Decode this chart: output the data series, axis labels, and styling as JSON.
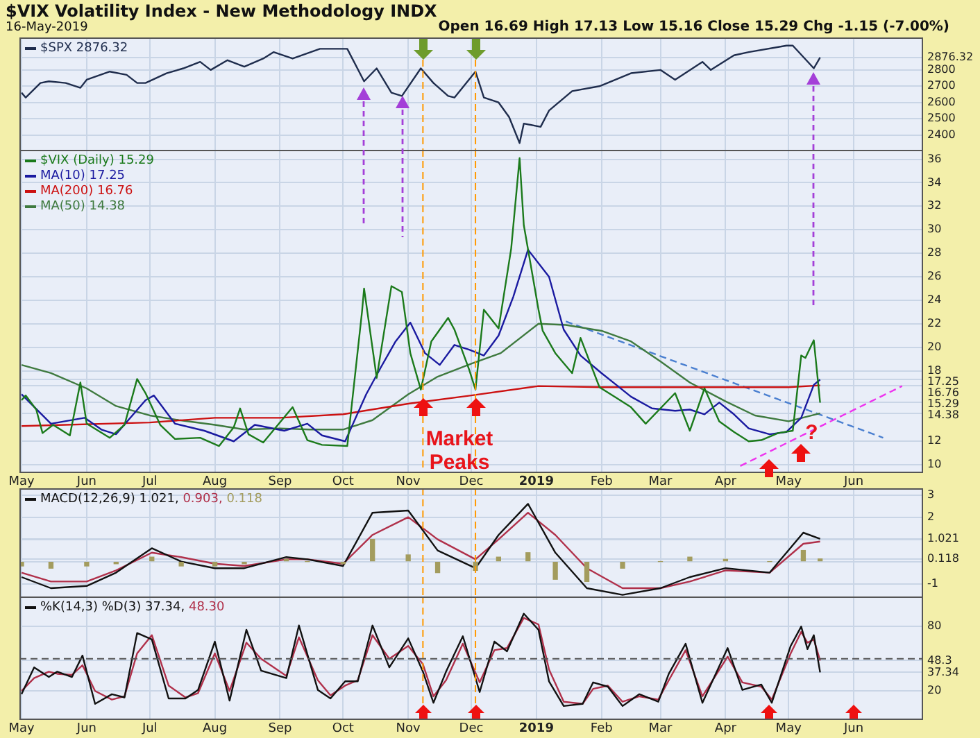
{
  "chart_data": [
    {
      "type": "line",
      "title": "$VIX Volatility Index - New Methodology INDX",
      "subtitle": "16-May-2019",
      "annotations": [
        "Open 16.69 High 17.13 Low 15.16 Close 15.29 Chg -1.15 (-7.00%)"
      ],
      "xlim": [
        "2018-04-30",
        "2019-07-04"
      ],
      "xticks": [
        {
          "value": "2018-05-01",
          "label": null
        },
        {
          "value": "2018-06-01",
          "label": null
        },
        {
          "value": "2018-07-01",
          "label": null
        },
        {
          "value": "2018-08-01",
          "label": null
        },
        {
          "value": "2018-09-01",
          "label": null
        },
        {
          "value": "2018-10-01",
          "label": null
        },
        {
          "value": "2018-11-01",
          "label": null
        },
        {
          "value": "2018-12-01",
          "label": null
        },
        {
          "value": "2019-01-01",
          "label": null
        },
        {
          "value": "2019-02-01",
          "label": null
        },
        {
          "value": "2019-03-01",
          "label": null
        },
        {
          "value": "2019-04-01",
          "label": null
        },
        {
          "value": "2019-05-01",
          "label": null
        },
        {
          "value": "2019-06-01",
          "label": null
        }
      ],
      "ylim": [
        2300,
        3000
      ],
      "yticks": [
        2400,
        2500,
        2600,
        2700,
        2800,
        2876.32
      ],
      "tick_labels": "y",
      "grid": true,
      "legend": "top left",
      "ref_lines": [
        {
          "axis": "x",
          "value": "2018-11-08",
          "color": "#ff9900",
          "line_style": "dashed"
        },
        {
          "axis": "x",
          "value": "2018-12-03",
          "color": "#ff9900",
          "line_style": "dashed"
        }
      ],
      "series": [
        {
          "name": "$SPX 2876.32",
          "color": "#1f2d4d",
          "x": [
            "2018-05-01",
            "2018-05-03",
            "2018-05-10",
            "2018-05-14",
            "2018-05-22",
            "2018-05-29",
            "2018-06-01",
            "2018-06-12",
            "2018-06-20",
            "2018-06-25",
            "2018-06-29",
            "2018-07-09",
            "2018-07-17",
            "2018-07-25",
            "2018-07-30",
            "2018-08-07",
            "2018-08-15",
            "2018-08-24",
            "2018-08-29",
            "2018-09-07",
            "2018-09-20",
            "2018-10-03",
            "2018-10-11",
            "2018-10-17",
            "2018-10-24",
            "2018-10-29",
            "2018-11-07",
            "2018-11-13",
            "2018-11-20",
            "2018-11-23",
            "2018-12-03",
            "2018-12-07",
            "2018-12-14",
            "2018-12-19",
            "2018-12-24",
            "2018-12-26",
            "2019-01-03",
            "2019-01-07",
            "2019-01-18",
            "2019-01-31",
            "2019-02-15",
            "2019-03-01",
            "2019-03-08",
            "2019-03-21",
            "2019-03-25",
            "2019-04-05",
            "2019-04-12",
            "2019-04-30",
            "2019-05-03",
            "2019-05-13",
            "2019-05-16"
          ],
          "values": [
            2660,
            2630,
            2720,
            2730,
            2720,
            2690,
            2740,
            2790,
            2770,
            2720,
            2720,
            2780,
            2810,
            2850,
            2800,
            2860,
            2820,
            2870,
            2910,
            2870,
            2930,
            2930,
            2730,
            2810,
            2660,
            2640,
            2810,
            2720,
            2640,
            2630,
            2790,
            2630,
            2600,
            2510,
            2350,
            2470,
            2450,
            2550,
            2670,
            2700,
            2780,
            2800,
            2740,
            2850,
            2800,
            2890,
            2910,
            2950,
            2950,
            2810,
            2876.32
          ]
        }
      ]
    },
    {
      "type": "line",
      "xlim": [
        "2018-04-30",
        "2019-07-04"
      ],
      "xticks": [
        {
          "value": "2018-05-01",
          "label": "May"
        },
        {
          "value": "2018-06-01",
          "label": "Jun"
        },
        {
          "value": "2018-07-01",
          "label": "Jul"
        },
        {
          "value": "2018-08-01",
          "label": "Aug"
        },
        {
          "value": "2018-09-01",
          "label": "Sep"
        },
        {
          "value": "2018-10-01",
          "label": "Oct"
        },
        {
          "value": "2018-11-01",
          "label": "Nov"
        },
        {
          "value": "2018-12-01",
          "label": "Dec"
        },
        {
          "value": "2019-01-01",
          "label": "2019"
        },
        {
          "value": "2019-02-01",
          "label": "Feb"
        },
        {
          "value": "2019-03-01",
          "label": "Mar"
        },
        {
          "value": "2019-04-01",
          "label": "Apr"
        },
        {
          "value": "2019-05-01",
          "label": "May"
        },
        {
          "value": "2019-06-01",
          "label": "Jun"
        }
      ],
      "ylim": [
        9.3,
        36.8
      ],
      "yticks": [
        10,
        12,
        14.38,
        15.29,
        16.76,
        17.25,
        18,
        20,
        22,
        24,
        26,
        28,
        30,
        32,
        34,
        36
      ],
      "grid": true,
      "legend": "top left",
      "annotations": [
        "Market Peaks",
        {
          "text": "?",
          "x": "2019-05-12",
          "y": 12.7
        }
      ],
      "ref_lines": [
        {
          "axis": "x",
          "value": "2018-11-08",
          "color": "#ff9900",
          "line_style": "dashed"
        },
        {
          "axis": "x",
          "value": "2018-12-03",
          "color": "#ff9900",
          "line_style": "dashed"
        }
      ],
      "series": [
        {
          "name": "$VIX (Daily) 15.29",
          "color": "#1b7a1b",
          "x": [
            "2018-05-01",
            "2018-05-03",
            "2018-05-08",
            "2018-05-11",
            "2018-05-16",
            "2018-05-24",
            "2018-05-29",
            "2018-06-01",
            "2018-06-12",
            "2018-06-19",
            "2018-06-25",
            "2018-06-29",
            "2018-07-06",
            "2018-07-13",
            "2018-07-25",
            "2018-08-03",
            "2018-08-10",
            "2018-08-13",
            "2018-08-17",
            "2018-08-24",
            "2018-09-07",
            "2018-09-14",
            "2018-09-21",
            "2018-10-03",
            "2018-10-10",
            "2018-10-11",
            "2018-10-17",
            "2018-10-24",
            "2018-10-29",
            "2018-11-02",
            "2018-11-07",
            "2018-11-12",
            "2018-11-20",
            "2018-11-23",
            "2018-11-30",
            "2018-12-03",
            "2018-12-07",
            "2018-12-14",
            "2018-12-20",
            "2018-12-24",
            "2018-12-26",
            "2019-01-02",
            "2019-01-04",
            "2019-01-10",
            "2019-01-18",
            "2019-01-22",
            "2019-01-31",
            "2019-02-08",
            "2019-02-15",
            "2019-02-22",
            "2019-03-08",
            "2019-03-15",
            "2019-03-22",
            "2019-03-29",
            "2019-04-05",
            "2019-04-12",
            "2019-04-18",
            "2019-04-26",
            "2019-05-03",
            "2019-05-07",
            "2019-05-09",
            "2019-05-13",
            "2019-05-16"
          ],
          "values": [
            15.5,
            15.9,
            14.7,
            12.7,
            13.4,
            12.5,
            17.0,
            13.5,
            12.3,
            13.4,
            17.3,
            16.1,
            13.4,
            12.2,
            12.3,
            11.6,
            13.2,
            14.8,
            12.6,
            11.9,
            14.9,
            12.1,
            11.7,
            11.6,
            23.0,
            25.0,
            17.4,
            25.2,
            24.7,
            19.5,
            16.4,
            20.5,
            22.5,
            21.5,
            18.1,
            16.4,
            23.2,
            21.6,
            28.4,
            36.1,
            30.4,
            23.2,
            21.4,
            19.5,
            17.8,
            20.8,
            16.6,
            15.7,
            14.9,
            13.5,
            16.1,
            12.9,
            16.5,
            13.7,
            12.8,
            12.0,
            12.1,
            12.7,
            12.9,
            19.3,
            19.1,
            20.6,
            15.29
          ]
        },
        {
          "name": "MA(10) 17.25",
          "color": "#1a1aa0",
          "x": [
            "2018-05-01",
            "2018-05-15",
            "2018-05-31",
            "2018-06-08",
            "2018-06-15",
            "2018-06-29",
            "2018-07-03",
            "2018-07-13",
            "2018-07-27",
            "2018-08-10",
            "2018-08-20",
            "2018-09-03",
            "2018-09-14",
            "2018-09-21",
            "2018-10-02",
            "2018-10-12",
            "2018-10-19",
            "2018-10-26",
            "2018-11-02",
            "2018-11-09",
            "2018-11-16",
            "2018-11-23",
            "2018-11-30",
            "2018-12-07",
            "2018-12-14",
            "2018-12-21",
            "2018-12-28",
            "2019-01-07",
            "2019-01-14",
            "2019-01-22",
            "2019-02-01",
            "2019-02-08",
            "2019-02-15",
            "2019-02-25",
            "2019-03-08",
            "2019-03-15",
            "2019-03-22",
            "2019-03-29",
            "2019-04-05",
            "2019-04-12",
            "2019-04-22",
            "2019-04-30",
            "2019-05-07",
            "2019-05-13",
            "2019-05-16"
          ],
          "values": [
            16.0,
            13.5,
            14.0,
            13.0,
            12.6,
            15.5,
            15.9,
            13.5,
            12.9,
            12.0,
            13.4,
            12.9,
            13.5,
            12.5,
            12.0,
            16.0,
            18.3,
            20.5,
            22.1,
            19.5,
            18.5,
            20.2,
            19.8,
            19.3,
            21.0,
            24.3,
            28.3,
            26.0,
            21.5,
            19.3,
            17.8,
            16.8,
            15.8,
            14.8,
            14.6,
            14.7,
            14.3,
            15.3,
            14.3,
            13.1,
            12.6,
            12.8,
            14.0,
            16.8,
            17.25
          ]
        },
        {
          "name": "MA(200) 16.76",
          "color": "#cc1111",
          "x": [
            "2018-05-01",
            "2018-07-01",
            "2018-08-01",
            "2018-09-01",
            "2018-10-01",
            "2018-11-01",
            "2018-12-01",
            "2019-01-02",
            "2019-02-01",
            "2019-03-01",
            "2019-04-01",
            "2019-05-01",
            "2019-05-16"
          ],
          "values": [
            13.3,
            13.6,
            14.0,
            14.0,
            14.3,
            15.2,
            15.9,
            16.7,
            16.6,
            16.6,
            16.6,
            16.6,
            16.76
          ]
        },
        {
          "name": "MA(50) 14.38",
          "color": "#3f7a3f",
          "x": [
            "2018-05-01",
            "2018-05-15",
            "2018-06-01",
            "2018-06-15",
            "2018-07-01",
            "2018-07-15",
            "2018-08-01",
            "2018-08-15",
            "2018-09-01",
            "2018-09-15",
            "2018-10-01",
            "2018-10-15",
            "2018-11-01",
            "2018-11-15",
            "2018-12-01",
            "2018-12-15",
            "2019-01-02",
            "2019-01-15",
            "2019-02-01",
            "2019-02-15",
            "2019-03-01",
            "2019-03-15",
            "2019-04-01",
            "2019-04-15",
            "2019-05-01",
            "2019-05-16"
          ],
          "values": [
            18.5,
            17.8,
            16.5,
            15.0,
            14.2,
            13.8,
            13.4,
            13.0,
            13.1,
            13.0,
            13.0,
            13.8,
            16.0,
            17.5,
            18.6,
            19.5,
            22.0,
            21.9,
            21.4,
            20.5,
            18.8,
            17.0,
            15.4,
            14.2,
            13.7,
            14.38
          ]
        },
        {
          "type": "line",
          "color": "#4a7fd0",
          "line_style": "dashed",
          "x": [
            "2019-01-15",
            "2019-06-15"
          ],
          "values": [
            22.2,
            12.3
          ]
        },
        {
          "type": "line",
          "color": "#ee33ee",
          "line_style": "dashed",
          "x": [
            "2019-04-08",
            "2019-06-24"
          ],
          "values": [
            9.9,
            16.7
          ]
        }
      ]
    },
    {
      "type": "line",
      "xlim": [
        "2018-04-30",
        "2019-07-04"
      ],
      "xticks": [
        {
          "value": "2018-05-01",
          "label": null
        },
        {
          "value": "2018-06-01",
          "label": null
        },
        {
          "value": "2018-07-01",
          "label": null
        },
        {
          "value": "2018-08-01",
          "label": null
        },
        {
          "value": "2018-09-01",
          "label": null
        },
        {
          "value": "2018-10-01",
          "label": null
        },
        {
          "value": "2018-11-01",
          "label": null
        },
        {
          "value": "2018-12-01",
          "label": null
        },
        {
          "value": "2019-01-01",
          "label": null
        },
        {
          "value": "2019-02-01",
          "label": null
        },
        {
          "value": "2019-03-01",
          "label": null
        },
        {
          "value": "2019-04-01",
          "label": null
        },
        {
          "value": "2019-05-01",
          "label": null
        },
        {
          "value": "2019-06-01",
          "label": null
        }
      ],
      "ylim": [
        -1.7,
        3.3
      ],
      "yticks": [
        -1,
        {
          "value": 0,
          "label": null
        },
        0.118,
        {
          "value": 1,
          "label": null
        },
        1.021,
        2,
        3
      ],
      "tick_labels": "y",
      "grid": true,
      "legend": "top left",
      "ref_lines": [
        {
          "axis": "x",
          "value": "2018-11-08",
          "color": "#ff9900",
          "line_style": "dashed"
        },
        {
          "axis": "x",
          "value": "2018-12-03",
          "color": "#ff9900",
          "line_style": "dashed"
        }
      ],
      "x": [
        "2018-05-01",
        "2018-05-15",
        "2018-06-01",
        "2018-06-15",
        "2018-07-02",
        "2018-07-16",
        "2018-08-01",
        "2018-08-15",
        "2018-09-04",
        "2018-09-14",
        "2018-10-01",
        "2018-10-15",
        "2018-11-01",
        "2018-11-15",
        "2018-12-03",
        "2018-12-14",
        "2018-12-28",
        "2019-01-10",
        "2019-01-25",
        "2019-02-11",
        "2019-03-01",
        "2019-03-15",
        "2019-04-01",
        "2019-04-22",
        "2019-05-08",
        "2019-05-16"
      ],
      "series": [
        {
          "name": "MACD(12,26,9) 1.021,",
          "color": "#111111",
          "values": [
            -0.7,
            -1.2,
            -1.1,
            -0.5,
            0.6,
            0.0,
            -0.3,
            -0.3,
            0.2,
            0.1,
            -0.2,
            2.2,
            2.3,
            0.5,
            -0.3,
            1.2,
            2.6,
            0.4,
            -1.2,
            -1.5,
            -1.2,
            -0.7,
            -0.3,
            -0.5,
            1.3,
            1.021
          ]
        },
        {
          "name": "0.903,",
          "color": "#b0304a",
          "values": [
            -0.5,
            -0.9,
            -0.9,
            -0.4,
            0.4,
            0.2,
            -0.1,
            -0.2,
            0.1,
            0.1,
            -0.1,
            1.2,
            2.0,
            1.0,
            0.1,
            1.0,
            2.2,
            1.2,
            -0.3,
            -1.2,
            -1.2,
            -0.9,
            -0.4,
            -0.5,
            0.8,
            0.903
          ]
        },
        {
          "type": "bar",
          "name": "0.118",
          "color": "#a39c5e",
          "values": [
            -0.2,
            -0.3,
            -0.2,
            -0.1,
            0.2,
            -0.2,
            -0.2,
            -0.1,
            0.1,
            0,
            -0.1,
            1.0,
            0.3,
            -0.5,
            -0.4,
            0.2,
            0.4,
            -0.8,
            -0.9,
            -0.3,
            0,
            0.2,
            0.1,
            0,
            0.5,
            0.118
          ]
        }
      ]
    },
    {
      "type": "line",
      "xlim": [
        "2018-04-30",
        "2019-07-04"
      ],
      "xticks": [
        {
          "value": "2018-05-01",
          "label": "May"
        },
        {
          "value": "2018-06-01",
          "label": "Jun"
        },
        {
          "value": "2018-07-01",
          "label": "Jul"
        },
        {
          "value": "2018-08-01",
          "label": "Aug"
        },
        {
          "value": "2018-09-01",
          "label": "Sep"
        },
        {
          "value": "2018-10-01",
          "label": "Oct"
        },
        {
          "value": "2018-11-01",
          "label": "Nov"
        },
        {
          "value": "2018-12-01",
          "label": "Dec"
        },
        {
          "value": "2019-01-01",
          "label": "2019"
        },
        {
          "value": "2019-02-01",
          "label": "Feb"
        },
        {
          "value": "2019-03-01",
          "label": "Mar"
        },
        {
          "value": "2019-04-01",
          "label": "Apr"
        },
        {
          "value": "2019-05-01",
          "label": "May"
        },
        {
          "value": "2019-06-01",
          "label": "Jun"
        }
      ],
      "ylim": [
        -7,
        108
      ],
      "yticks": [
        20,
        37.34,
        48.3,
        80
      ],
      "grid": true,
      "legend": "top left",
      "ref_lines": [
        {
          "axis": "x",
          "value": "2018-11-08",
          "color": "#ff9900",
          "line_style": "dashed"
        },
        {
          "axis": "x",
          "value": "2018-12-03",
          "color": "#ff9900",
          "line_style": "dashed"
        },
        {
          "axis": "y",
          "value": 50,
          "color": "#555555",
          "line_style": "dashed"
        }
      ],
      "x": [
        "2018-05-01",
        "2018-05-07",
        "2018-05-14",
        "2018-05-18",
        "2018-05-25",
        "2018-05-30",
        "2018-06-05",
        "2018-06-13",
        "2018-06-19",
        "2018-06-25",
        "2018-07-02",
        "2018-07-10",
        "2018-07-18",
        "2018-07-24",
        "2018-08-01",
        "2018-08-08",
        "2018-08-16",
        "2018-08-23",
        "2018-09-04",
        "2018-09-10",
        "2018-09-19",
        "2018-09-25",
        "2018-10-02",
        "2018-10-08",
        "2018-10-15",
        "2018-10-23",
        "2018-11-01",
        "2018-11-08",
        "2018-11-13",
        "2018-11-19",
        "2018-11-27",
        "2018-12-05",
        "2018-12-12",
        "2018-12-18",
        "2018-12-26",
        "2019-01-02",
        "2019-01-07",
        "2019-01-14",
        "2019-01-23",
        "2019-01-28",
        "2019-02-04",
        "2019-02-11",
        "2019-02-19",
        "2019-02-28",
        "2019-03-05",
        "2019-03-13",
        "2019-03-21",
        "2019-04-02",
        "2019-04-09",
        "2019-04-18",
        "2019-04-23",
        "2019-05-02",
        "2019-05-07",
        "2019-05-10",
        "2019-05-13",
        "2019-05-16"
      ],
      "series": [
        {
          "name": "%K(14,3) %D(3) 37.34,",
          "color": "#111111",
          "values": [
            17,
            42,
            33,
            38,
            33,
            53,
            8,
            17,
            14,
            74,
            68,
            13,
            13,
            21,
            66,
            11,
            77,
            39,
            32,
            81,
            21,
            13,
            29,
            29,
            81,
            42,
            69,
            38,
            9,
            38,
            71,
            19,
            66,
            57,
            92,
            77,
            29,
            6,
            8,
            28,
            24,
            6,
            17,
            10,
            36,
            64,
            9,
            60,
            21,
            26,
            9,
            62,
            80,
            59,
            72,
            37.34
          ]
        },
        {
          "name": "48.30",
          "color": "#b0304a",
          "values": [
            20,
            32,
            38,
            36,
            35,
            44,
            20,
            12,
            15,
            55,
            72,
            25,
            14,
            18,
            55,
            20,
            65,
            50,
            34,
            70,
            30,
            16,
            25,
            30,
            72,
            50,
            62,
            45,
            15,
            30,
            64,
            28,
            58,
            60,
            88,
            82,
            40,
            10,
            8,
            22,
            25,
            10,
            15,
            12,
            30,
            58,
            15,
            52,
            28,
            24,
            12,
            55,
            75,
            65,
            68,
            48.3
          ]
        }
      ]
    }
  ]
}
